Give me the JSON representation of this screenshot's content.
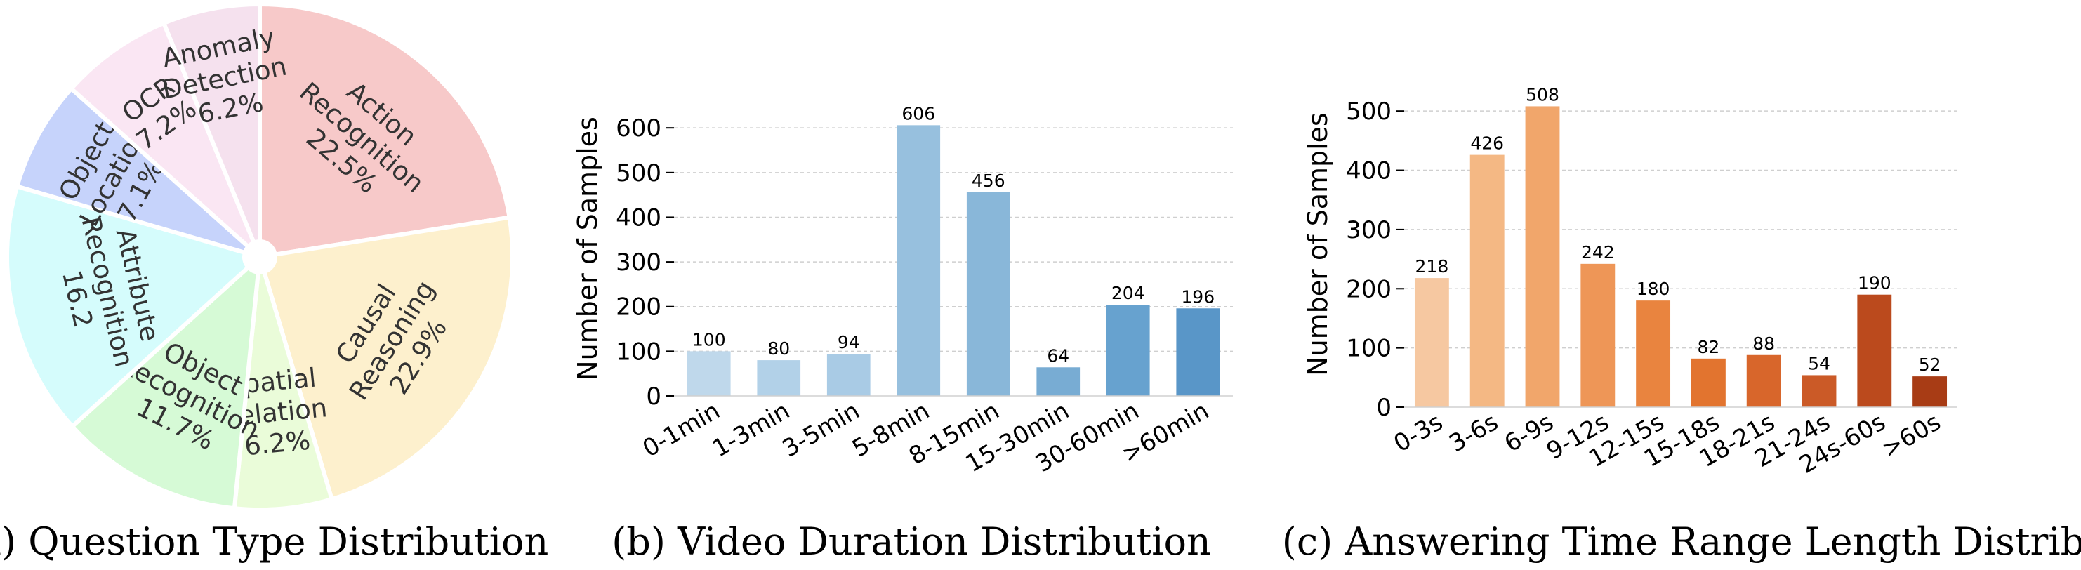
{
  "chart_data": [
    {
      "type": "pie",
      "caption": "(a) Question Type Distribution",
      "slices": [
        {
          "label_lines": [
            "Action",
            "Recognition",
            "22.5%"
          ],
          "value": 22.5,
          "color": "#f7c9c9"
        },
        {
          "label_lines": [
            "Causal",
            "Reasoning",
            "22.9%"
          ],
          "value": 22.9,
          "color": "#fdf0cd"
        },
        {
          "label_lines": [
            "Spatial",
            "Relation",
            "6.2%"
          ],
          "value": 6.2,
          "color": "#eafcd9"
        },
        {
          "label_lines": [
            "Object",
            "Recognition",
            "11.7%"
          ],
          "value": 11.7,
          "color": "#d6fad6"
        },
        {
          "label_lines": [
            "Attribute",
            "Recognition",
            "16.2"
          ],
          "value": 16.2,
          "color": "#d5fcfc"
        },
        {
          "label_lines": [
            "Object",
            "Location",
            "7.1%"
          ],
          "value": 7.1,
          "color": "#c6d3fb"
        },
        {
          "label_lines": [
            "OCR",
            "7.2%"
          ],
          "value": 7.2,
          "color": "#fae6f3"
        },
        {
          "label_lines": [
            "Anomaly",
            "Detection",
            "6.2%"
          ],
          "value": 6.2,
          "color": "#f5e1ee"
        }
      ]
    },
    {
      "type": "bar",
      "caption": "(b) Video Duration Distribution",
      "ylabel": "Number of Samples",
      "ylim": [
        0,
        660
      ],
      "yticks": [
        0,
        100,
        200,
        300,
        400,
        500,
        600
      ],
      "grid": true,
      "categories": [
        "0-1min",
        "1-3min",
        "3-5min",
        "5-8min",
        "8-15min",
        "15-30min",
        "30-60min",
        ">60min"
      ],
      "values": [
        100,
        80,
        94,
        606,
        456,
        64,
        204,
        196
      ],
      "colors": [
        "#bfd8eb",
        "#b2d1e8",
        "#a9cbe5",
        "#97c0de",
        "#89b7d9",
        "#78acd3",
        "#67a2cf",
        "#5996c8"
      ]
    },
    {
      "type": "bar",
      "caption": "(c) Answering Time Range Length Distribution",
      "ylabel": "Number of Samples",
      "ylim": [
        0,
        550
      ],
      "yticks": [
        0,
        100,
        200,
        300,
        400,
        500
      ],
      "grid": true,
      "categories": [
        "0-3s",
        "3-6s",
        "6-9s",
        "9-12s",
        "12-15s",
        "15-18s",
        "18-21s",
        "21-24s",
        "24s-60s",
        ">60s"
      ],
      "values": [
        218,
        426,
        508,
        242,
        180,
        82,
        88,
        54,
        190,
        52
      ],
      "colors": [
        "#f6c8a1",
        "#f4b884",
        "#f1a66b",
        "#ee9657",
        "#e9843f",
        "#e2742f",
        "#d8662b",
        "#cb5a27",
        "#bb4a1d",
        "#a83c15"
      ]
    }
  ]
}
